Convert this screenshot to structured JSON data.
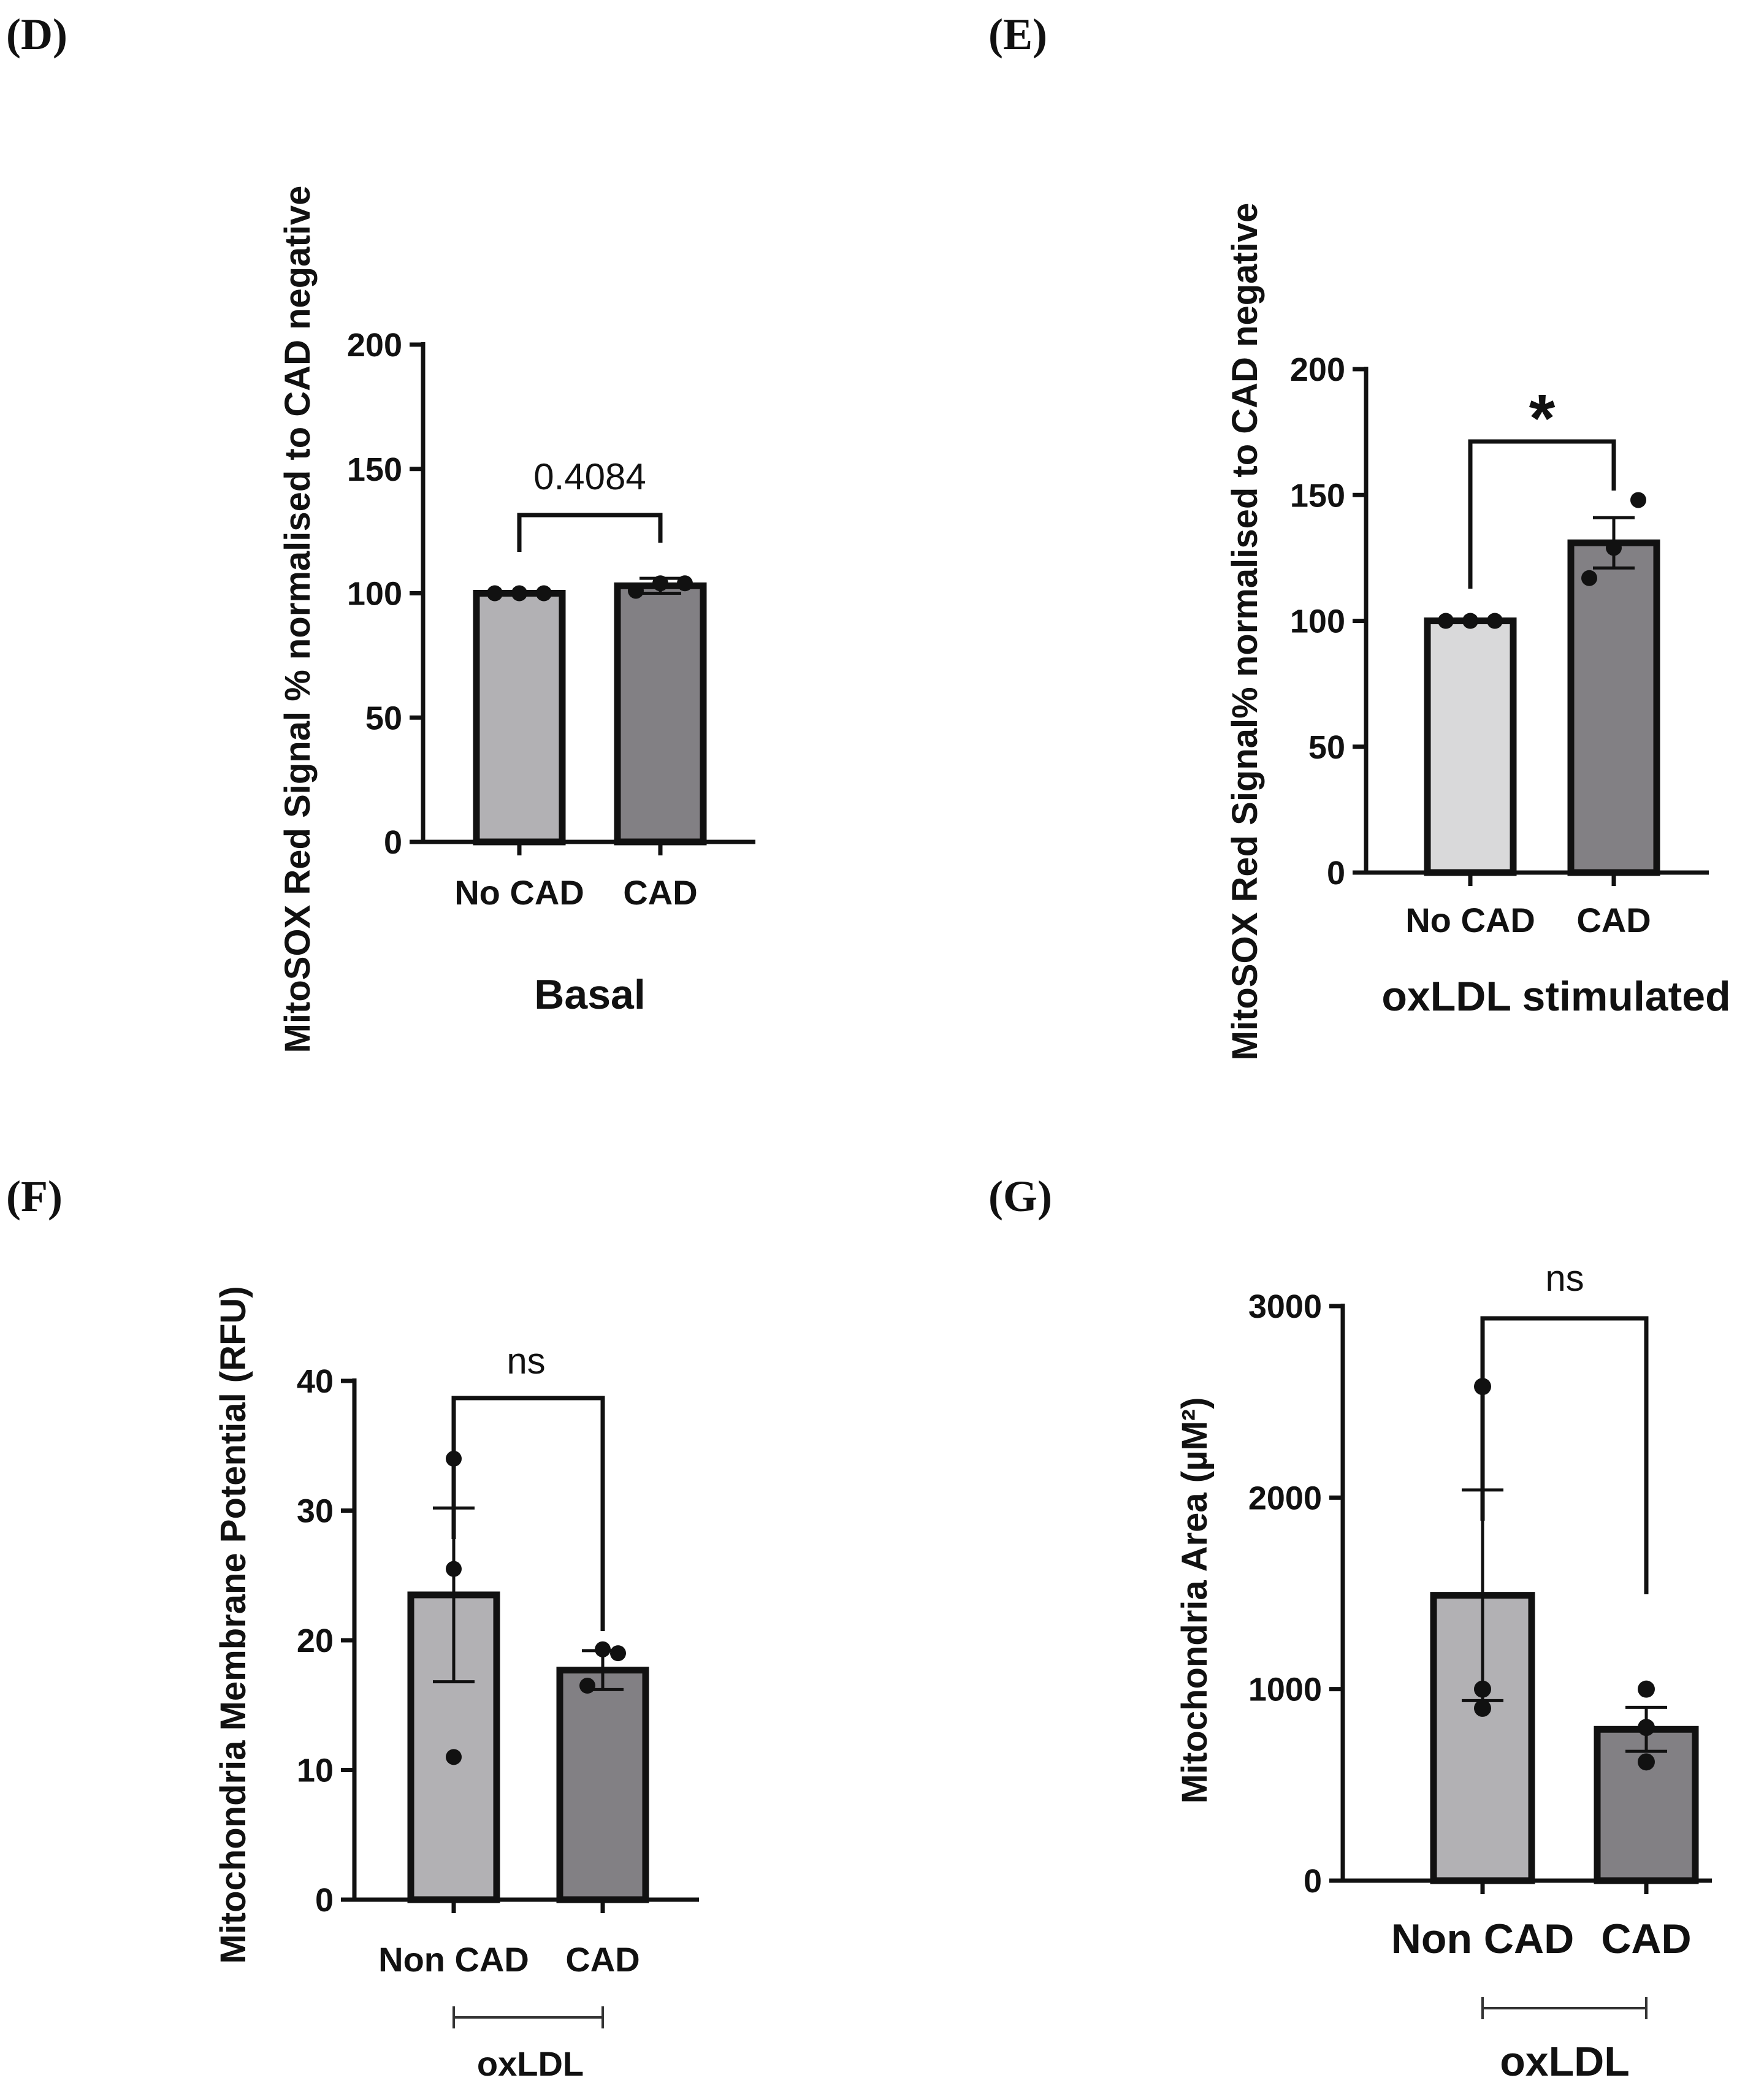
{
  "panels": {
    "D": {
      "label": "(D)",
      "chart_data": {
        "type": "bar",
        "title": "",
        "ylabel": "MitoSOX Red Signal % normalised to CAD negative",
        "xlabel": "Basal",
        "ylim": [
          0,
          200
        ],
        "yticks": [
          0,
          50,
          100,
          150,
          200
        ],
        "categories": [
          "No CAD",
          "CAD"
        ],
        "values": [
          100,
          103
        ],
        "errors": [
          0,
          3
        ],
        "points": [
          [
            100,
            100,
            100
          ],
          [
            101,
            104,
            104
          ]
        ],
        "bar_colors": [
          "#b2b1b4",
          "#828084"
        ],
        "comparison": "0.4084",
        "group_label": ""
      }
    },
    "E": {
      "label": "(E)",
      "chart_data": {
        "type": "bar",
        "title": "",
        "ylabel": "MitoSOX Red Signal% normalised to CAD negative",
        "xlabel": "oxLDL stimulated",
        "ylim": [
          0,
          200
        ],
        "yticks": [
          0,
          50,
          100,
          150,
          200
        ],
        "categories": [
          "No CAD",
          "CAD"
        ],
        "values": [
          100,
          131
        ],
        "errors": [
          0,
          10
        ],
        "points": [
          [
            100,
            100,
            100
          ],
          [
            117,
            129,
            148
          ]
        ],
        "bar_colors": [
          "#d9d9da",
          "#828084"
        ],
        "comparison": "*",
        "group_label": ""
      }
    },
    "F": {
      "label": "(F)",
      "chart_data": {
        "type": "bar",
        "title": "",
        "ylabel": "Mitochondria Membrane Potential (RFU)",
        "xlabel": "",
        "ylim": [
          0,
          40
        ],
        "yticks": [
          0,
          10,
          20,
          30,
          40
        ],
        "categories": [
          "Non CAD",
          "CAD"
        ],
        "values": [
          23.5,
          17.7
        ],
        "errors": [
          6.7,
          1.5
        ],
        "points": [
          [
            11,
            25.5,
            34
          ],
          [
            16.5,
            19,
            19.3
          ]
        ],
        "bar_colors": [
          "#b2b1b4",
          "#828084"
        ],
        "comparison": "ns",
        "group_label": "oxLDL"
      }
    },
    "G": {
      "label": "(G)",
      "chart_data": {
        "type": "bar",
        "title": "",
        "ylabel": "Mitochondria Area (µM²)",
        "xlabel": "",
        "ylim": [
          0,
          3000
        ],
        "yticks": [
          0,
          1000,
          2000,
          3000
        ],
        "categories": [
          "Non CAD",
          "CAD"
        ],
        "values": [
          1490,
          790
        ],
        "errors": [
          550,
          115
        ],
        "points": [
          [
            900,
            1000,
            2580
          ],
          [
            620,
            800,
            1000
          ]
        ],
        "bar_colors": [
          "#b2b1b4",
          "#828084"
        ],
        "comparison": "ns",
        "group_label": "oxLDL"
      }
    }
  }
}
